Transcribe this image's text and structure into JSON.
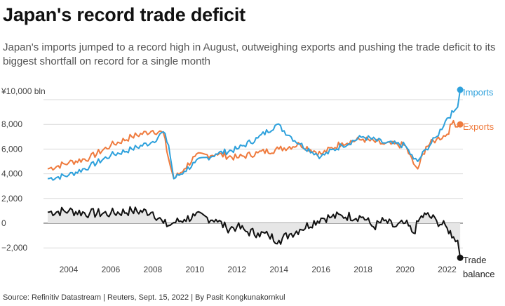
{
  "title": "Japan's record trade deficit",
  "subtitle": "Japan's imports jumped to a record high in August, outweighing exports and pushing the trade deficit to its biggest shortfall on record for a single month",
  "source": "Source: Refinitiv Datastream | Reuters, Sept. 15, 2022 | By Pasit Kongkunakornkul",
  "colors": {
    "imports": "#2ea1dc",
    "exports": "#ef7b3e",
    "balance": "#111111",
    "balance_fill": "#e6e6e6",
    "grid": "#d9d9d9"
  },
  "chart_data": {
    "type": "line",
    "y_unit_label": "¥10,000 bln",
    "y_ticks": [
      "8,000",
      "6,000",
      "4,000",
      "2,000",
      "0",
      "−2,000"
    ],
    "y_tick_values": [
      8000,
      6000,
      4000,
      2000,
      0,
      -2000
    ],
    "ylim": [
      -2900,
      10500
    ],
    "xlim": [
      2002.8,
      2022.75
    ],
    "x_ticks": [
      "2004",
      "2006",
      "2008",
      "2010",
      "2012",
      "2014",
      "2016",
      "2018",
      "2020",
      "2022"
    ],
    "x_tick_values": [
      2004,
      2006,
      2008,
      2010,
      2012,
      2014,
      2016,
      2018,
      2020,
      2022
    ],
    "series": [
      {
        "name": "Imports",
        "x": [
          2003.0,
          2004.0,
          2005.0,
          2006.0,
          2007.0,
          2008.0,
          2008.5,
          2008.75,
          2009.0,
          2009.5,
          2010.0,
          2011.0,
          2012.0,
          2013.0,
          2013.9,
          2014.5,
          2015.0,
          2016.0,
          2017.0,
          2018.0,
          2019.0,
          2020.0,
          2020.4,
          2020.6,
          2021.0,
          2021.5,
          2022.0,
          2022.3,
          2022.5,
          2022.62
        ],
        "values": [
          3600,
          3900,
          4600,
          5500,
          6000,
          6600,
          7400,
          6300,
          3600,
          4200,
          4900,
          5600,
          6000,
          6900,
          8000,
          7100,
          6400,
          5400,
          6300,
          7000,
          6500,
          6300,
          5200,
          5000,
          6000,
          7000,
          8500,
          9000,
          9400,
          10800
        ]
      },
      {
        "name": "Exports",
        "x": [
          2003.0,
          2004.0,
          2005.0,
          2006.0,
          2007.0,
          2008.0,
          2008.5,
          2008.75,
          2009.0,
          2009.5,
          2010.0,
          2011.0,
          2012.0,
          2013.0,
          2014.0,
          2015.0,
          2016.0,
          2017.0,
          2018.0,
          2019.0,
          2020.0,
          2020.4,
          2020.6,
          2021.0,
          2021.5,
          2022.0,
          2022.3,
          2022.5,
          2022.62
        ],
        "values": [
          4400,
          4900,
          5300,
          6300,
          7000,
          7500,
          7300,
          5200,
          3600,
          4400,
          5400,
          5600,
          5300,
          5700,
          6000,
          6400,
          5600,
          6500,
          6800,
          6400,
          6300,
          4800,
          4400,
          6200,
          6800,
          7200,
          8300,
          7800,
          8000
        ]
      },
      {
        "name": "Trade balance",
        "x": [
          2003.0,
          2004.0,
          2005.0,
          2006.0,
          2007.0,
          2008.0,
          2008.5,
          2008.75,
          2009.0,
          2009.5,
          2010.0,
          2011.0,
          2011.5,
          2012.0,
          2012.5,
          2013.0,
          2013.5,
          2014.0,
          2014.5,
          2015.0,
          2016.0,
          2016.5,
          2017.0,
          2018.0,
          2018.5,
          2019.0,
          2019.5,
          2020.0,
          2020.4,
          2020.7,
          2021.0,
          2021.5,
          2022.0,
          2022.3,
          2022.5,
          2022.62
        ],
        "values": [
          900,
          1000,
          800,
          800,
          1000,
          900,
          0,
          -200,
          50,
          300,
          600,
          300,
          -400,
          -300,
          -700,
          -800,
          -1000,
          -1400,
          -900,
          -500,
          400,
          500,
          600,
          500,
          -300,
          200,
          -300,
          0,
          -800,
          400,
          700,
          200,
          -400,
          -1100,
          -1400,
          -2800
        ]
      }
    ],
    "legend_labels": {
      "imports": "Imports",
      "exports": "Exports",
      "balance_line1": "Trade",
      "balance_line2": "balance"
    },
    "grid": true,
    "legend": "direct labels at right end of each line"
  }
}
